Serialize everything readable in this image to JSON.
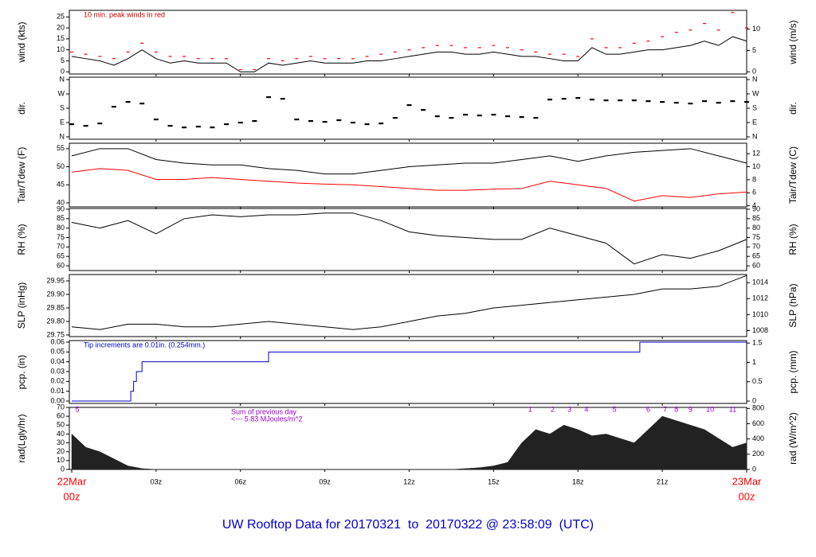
{
  "page_title": "UW Rooftop Data for 20170321  to  20170322 @ 23:58:09  (UTC)",
  "chart_data": [
    {
      "type": "line",
      "ylabel": "wind (kts)",
      "y2label": "wind (m/s)",
      "annotation": "10 min. peak winds in red",
      "annotation_color": "#cc0000",
      "xlim": [
        0,
        24
      ],
      "ylim": [
        -1,
        28
      ],
      "yticks": [
        0,
        5,
        10,
        15,
        20,
        25
      ],
      "y2lim": [
        -0.51,
        14.4
      ],
      "y2ticks": [
        0,
        5,
        10
      ],
      "x": [
        0,
        0.5,
        1,
        1.5,
        2,
        2.5,
        3,
        3.5,
        4,
        4.5,
        5,
        5.5,
        6,
        6.5,
        7,
        7.5,
        8,
        8.5,
        9,
        9.5,
        10,
        10.5,
        11,
        11.5,
        12,
        12.5,
        13,
        13.5,
        14,
        14.5,
        15,
        15.5,
        16,
        16.5,
        17,
        17.5,
        18,
        18.5,
        19,
        19.5,
        20,
        20.5,
        21,
        21.5,
        22,
        22.5,
        23,
        23.5,
        24
      ],
      "series": [
        {
          "style": "line",
          "color": "#000000",
          "values": [
            7,
            6,
            5,
            3,
            6,
            10,
            6,
            4,
            5,
            4,
            4,
            4,
            0,
            0,
            4,
            3,
            4,
            5,
            4,
            4,
            4,
            5,
            5,
            6,
            7,
            8,
            9,
            9,
            8,
            8,
            9,
            8,
            7,
            7,
            6,
            5,
            5,
            11,
            8,
            8,
            9,
            10,
            10,
            11,
            12,
            14,
            12,
            16,
            14
          ]
        },
        {
          "style": "dash",
          "color": "#ff0000",
          "values": [
            9,
            8,
            7,
            6,
            9,
            13,
            9,
            7,
            7,
            6,
            6,
            6,
            1,
            1,
            6,
            5,
            6,
            7,
            6,
            6,
            6,
            7,
            8,
            9,
            10,
            11,
            12,
            12,
            11,
            11,
            12,
            11,
            10,
            9,
            8,
            8,
            7,
            15,
            11,
            11,
            13,
            14,
            16,
            18,
            19,
            22,
            19,
            27,
            20
          ]
        }
      ]
    },
    {
      "type": "scatter",
      "ylabel": "dir.",
      "y2label": "dir.",
      "xlim": [
        0,
        24
      ],
      "ylim": [
        -15,
        375
      ],
      "yticks": [
        {
          "value": 0,
          "label": "N"
        },
        {
          "value": 90,
          "label": "E"
        },
        {
          "value": 180,
          "label": "S"
        },
        {
          "value": 270,
          "label": "W"
        },
        {
          "value": 360,
          "label": "N"
        }
      ],
      "y2lim": [
        -15,
        375
      ],
      "y2ticks": [
        {
          "value": 0,
          "label": "N"
        },
        {
          "value": 90,
          "label": "E"
        },
        {
          "value": 180,
          "label": "S"
        },
        {
          "value": 270,
          "label": "W"
        },
        {
          "value": 360,
          "label": "N"
        }
      ],
      "x": [
        0,
        0.5,
        1,
        1.5,
        2,
        2.5,
        3,
        3.5,
        4,
        4.5,
        5,
        5.5,
        6,
        6.5,
        7,
        7.5,
        8,
        8.5,
        9,
        9.5,
        10,
        10.5,
        11,
        11.5,
        12,
        12.5,
        13,
        13.5,
        14,
        14.5,
        15,
        15.5,
        16,
        16.5,
        17,
        17.5,
        18,
        18.5,
        19,
        19.5,
        20,
        20.5,
        21,
        21.5,
        22,
        22.5,
        23,
        23.5,
        24
      ],
      "series": [
        {
          "style": "dot",
          "color": "#000000",
          "values": [
            80,
            70,
            85,
            190,
            220,
            210,
            110,
            70,
            60,
            65,
            60,
            80,
            90,
            100,
            250,
            240,
            110,
            100,
            95,
            105,
            90,
            80,
            85,
            120,
            200,
            170,
            130,
            120,
            140,
            135,
            140,
            130,
            125,
            120,
            235,
            240,
            245,
            235,
            230,
            230,
            230,
            225,
            220,
            215,
            210,
            225,
            215,
            225,
            220
          ]
        }
      ]
    },
    {
      "type": "line",
      "ylabel": "Tair/Tdew (F)",
      "y2label": "Tair/Tdew (C)",
      "xlim": [
        0,
        24
      ],
      "ylim": [
        38.9,
        56.5
      ],
      "yticks": [
        40,
        45,
        50,
        55
      ],
      "y2lim": [
        3.83,
        13.61
      ],
      "y2ticks": [
        4,
        6,
        8,
        10,
        12
      ],
      "x": [
        0,
        1,
        2,
        3,
        4,
        5,
        6,
        7,
        8,
        9,
        10,
        11,
        12,
        13,
        14,
        15,
        16,
        17,
        18,
        19,
        20,
        21,
        22,
        23,
        24
      ],
      "series": [
        {
          "style": "line",
          "color": "#000000",
          "values": [
            53,
            55,
            55,
            52,
            51,
            50.5,
            50.5,
            49.5,
            49,
            48,
            48,
            49,
            50,
            50.5,
            51,
            51,
            52,
            53,
            51.5,
            53,
            54,
            54.5,
            55,
            53,
            51
          ]
        },
        {
          "style": "line",
          "color": "#ff0000",
          "values": [
            48.5,
            49.5,
            49,
            46.5,
            46.5,
            47,
            46.5,
            46,
            45.5,
            45.2,
            45,
            44.5,
            44,
            43.5,
            43.5,
            43.8,
            44,
            46,
            45,
            44,
            40.5,
            42,
            41.5,
            42.5,
            43
          ]
        }
      ]
    },
    {
      "type": "line",
      "ylabel": "RH (%)",
      "y2label": "RH (%)",
      "xlim": [
        0,
        24
      ],
      "ylim": [
        57.5,
        90.4
      ],
      "yticks": [
        60,
        65,
        70,
        75,
        80,
        85,
        90
      ],
      "y2lim": [
        57.5,
        90.4
      ],
      "y2ticks": [
        60,
        65,
        70,
        75,
        80,
        85,
        90
      ],
      "x": [
        0,
        1,
        2,
        3,
        4,
        5,
        6,
        7,
        8,
        9,
        10,
        11,
        12,
        13,
        14,
        15,
        16,
        17,
        18,
        19,
        20,
        21,
        22,
        23,
        24
      ],
      "series": [
        {
          "style": "line",
          "color": "#000000",
          "values": [
            83,
            80,
            84,
            77,
            85,
            87,
            86,
            87,
            87,
            88,
            88,
            84,
            78,
            76,
            75,
            74,
            74,
            80,
            76,
            72,
            61,
            66,
            64,
            68,
            74
          ]
        }
      ]
    },
    {
      "type": "line",
      "ylabel": "SLP (inHg)",
      "y2label": "SLP (hPa)",
      "xlim": [
        0,
        24
      ],
      "ylim": [
        29.744,
        29.9735
      ],
      "yticks": [
        29.75,
        {
          "value": 29.8,
          "label": "29.80"
        },
        29.85,
        {
          "value": 29.9,
          "label": "29.90"
        },
        29.95
      ],
      "y2lim": [
        1007.25,
        1015.02
      ],
      "y2ticks": [
        1008,
        1010,
        1012,
        1014
      ],
      "x": [
        0,
        1,
        2,
        3,
        4,
        5,
        6,
        7,
        8,
        9,
        10,
        11,
        12,
        13,
        14,
        15,
        16,
        17,
        18,
        19,
        20,
        21,
        22,
        23,
        24
      ],
      "series": [
        {
          "style": "line",
          "color": "#000000",
          "values": [
            29.78,
            29.77,
            29.79,
            29.79,
            29.78,
            29.78,
            29.79,
            29.8,
            29.79,
            29.78,
            29.77,
            29.78,
            29.8,
            29.82,
            29.83,
            29.85,
            29.86,
            29.87,
            29.88,
            29.89,
            29.9,
            29.92,
            29.92,
            29.93,
            29.97
          ]
        }
      ]
    },
    {
      "type": "line",
      "ylabel": "pcp. (in)",
      "y2label": "pcp. (mm)",
      "annotation": "Tip increments are 0.01in. (0.254mm.)",
      "annotation_color": "#0000cc",
      "xlim": [
        0,
        24
      ],
      "ylim": [
        -0.0024,
        0.0616
      ],
      "yticks": [
        {
          "value": 0,
          "label": "0.00"
        },
        0.01,
        0.02,
        0.03,
        0.04,
        0.05,
        {
          "value": 0.06,
          "label": "0.06"
        }
      ],
      "y2lim": [
        -0.061,
        1.565
      ],
      "y2ticks": [
        0,
        0.5,
        1,
        1.5
      ],
      "x": [
        0,
        2.1,
        2.2,
        2.3,
        2.5,
        7,
        20.2,
        24
      ],
      "series": [
        {
          "style": "step",
          "color": "#0000cc",
          "values": [
            0,
            0.01,
            0.02,
            0.03,
            0.04,
            0.05,
            0.06,
            0.06
          ]
        }
      ]
    },
    {
      "type": "area",
      "ylabel": "rad(Lgly/hr)",
      "y2label": "rad (W/m^2)",
      "annotation": "Sum of previous day",
      "annotation2": "<--- 5.83 MJoules/m^2",
      "annotation_color": "#9900cc",
      "xlim": [
        0,
        24
      ],
      "ylim": [
        0,
        70
      ],
      "yticks": [
        0,
        10,
        20,
        30,
        40,
        50,
        60,
        70
      ],
      "y2lim": [
        0,
        813.6
      ],
      "y2ticks": [
        0,
        200,
        400,
        600,
        800
      ],
      "xticks": [
        {
          "value": 3,
          "label": "03z"
        },
        {
          "value": 6,
          "label": "06z"
        },
        {
          "value": 9,
          "label": "09z"
        },
        {
          "value": 12,
          "label": "12z"
        },
        {
          "value": 15,
          "label": "15z"
        },
        {
          "value": 18,
          "label": "18z"
        },
        {
          "value": 21,
          "label": "21z"
        }
      ],
      "x_start": [
        "22Mar",
        "00z"
      ],
      "x_end": [
        "23Mar",
        "00z"
      ],
      "x_end_color": "#ff0000",
      "hour_marks": [
        {
          "x": 0.2,
          "label": "5"
        },
        {
          "x": 16.3,
          "label": "1"
        },
        {
          "x": 17.1,
          "label": "2"
        },
        {
          "x": 17.7,
          "label": "3"
        },
        {
          "x": 18.3,
          "label": "4"
        },
        {
          "x": 19.3,
          "label": "5"
        },
        {
          "x": 20.5,
          "label": "6"
        },
        {
          "x": 21.1,
          "label": "7"
        },
        {
          "x": 21.5,
          "label": "8"
        },
        {
          "x": 22.0,
          "label": "9"
        },
        {
          "x": 22.7,
          "label": "10"
        },
        {
          "x": 23.5,
          "label": "11"
        }
      ],
      "x": [
        0,
        0.5,
        1,
        1.5,
        2,
        2.5,
        3,
        3.5,
        4,
        4.5,
        5,
        5.5,
        6,
        6.5,
        7,
        7.5,
        8,
        8.5,
        9,
        9.5,
        10,
        10.5,
        11,
        11.5,
        12,
        12.5,
        13,
        13.5,
        14,
        14.5,
        15,
        15.5,
        16,
        16.5,
        17,
        17.5,
        18,
        18.5,
        19,
        19.5,
        20,
        20.5,
        21,
        21.5,
        22,
        22.5,
        23,
        23.5,
        24
      ],
      "series": [
        {
          "style": "area",
          "color": "#222222",
          "values": [
            40,
            25,
            20,
            12,
            4,
            1,
            0,
            0,
            0,
            0,
            0,
            0,
            0,
            0,
            0,
            0,
            0,
            0,
            0,
            0,
            0,
            0,
            0,
            0,
            0,
            0,
            0,
            0,
            1,
            2,
            4,
            8,
            30,
            45,
            40,
            50,
            45,
            38,
            40,
            35,
            30,
            45,
            60,
            55,
            50,
            45,
            35,
            25,
            30
          ]
        }
      ]
    }
  ]
}
